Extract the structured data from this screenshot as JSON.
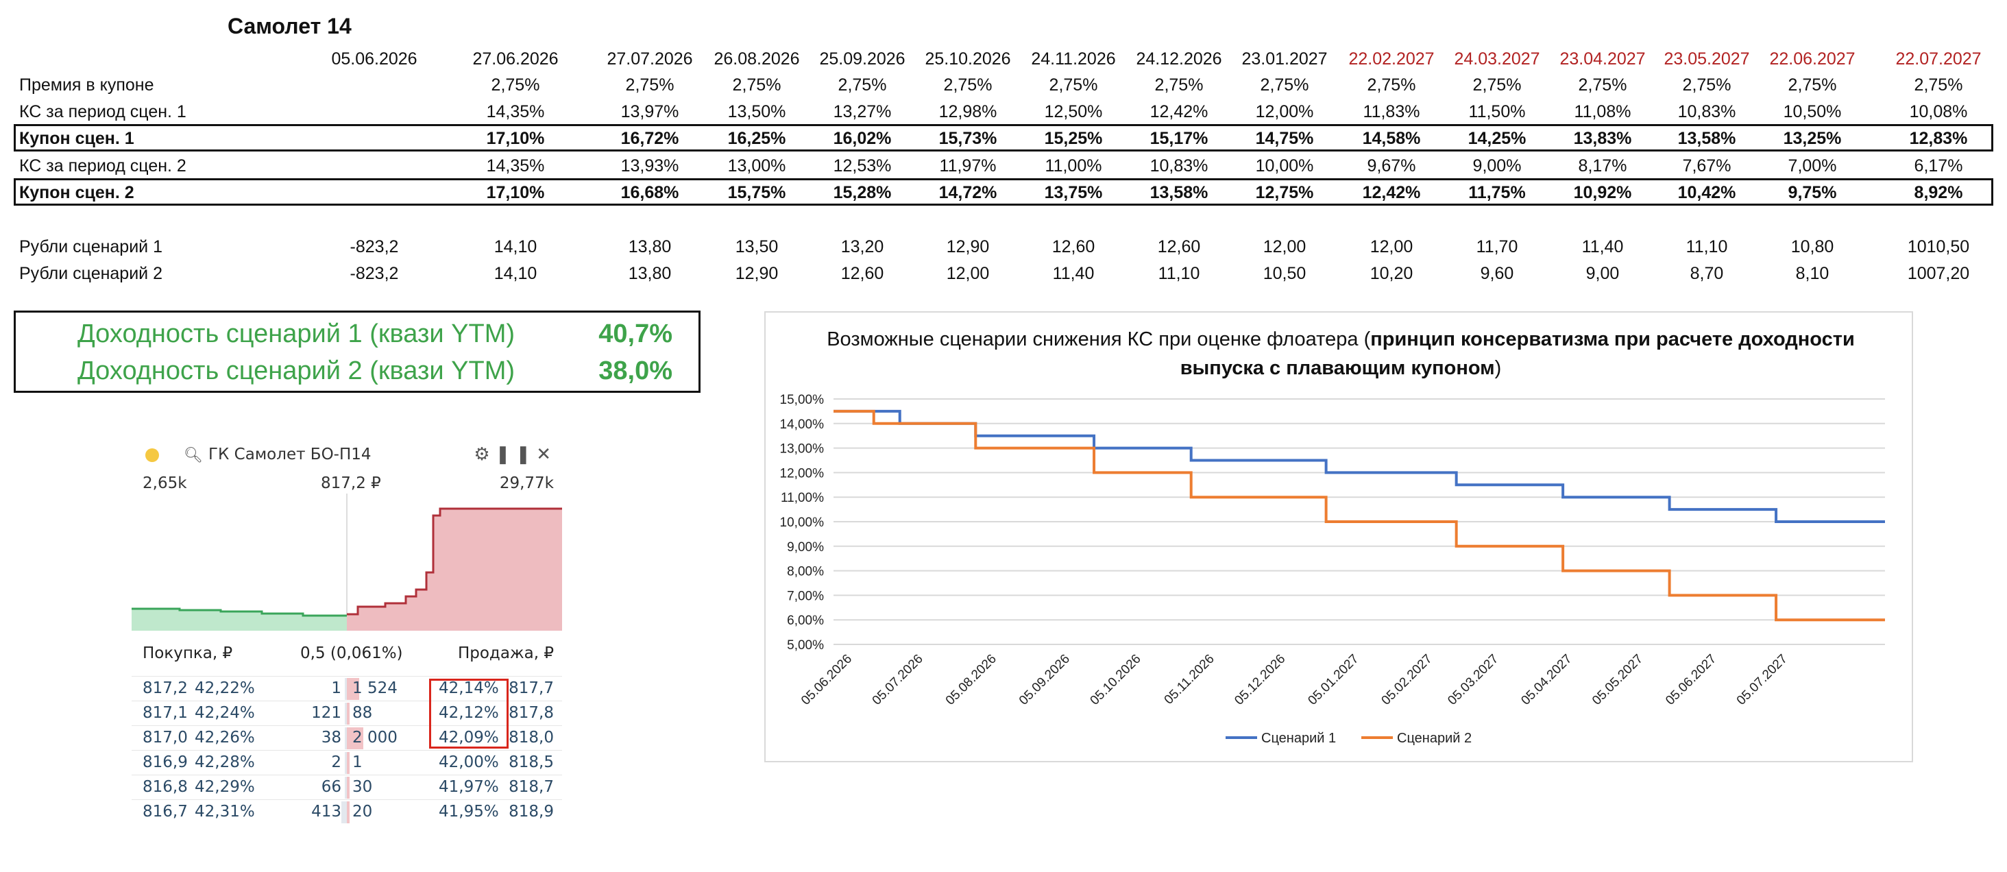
{
  "title": "Самолет 14",
  "dates": [
    "05.06.2026",
    "27.06.2026",
    "27.07.2026",
    "26.08.2026",
    "25.09.2026",
    "25.10.2026",
    "24.11.2026",
    "24.12.2026",
    "23.01.2027",
    "22.02.2027",
    "24.03.2027",
    "23.04.2027",
    "23.05.2027",
    "22.06.2027",
    "22.07.2027"
  ],
  "dates_red_from_index": 9,
  "rows": [
    {
      "label": "Премия в купоне",
      "bold": false,
      "values": [
        "",
        "2,75%",
        "2,75%",
        "2,75%",
        "2,75%",
        "2,75%",
        "2,75%",
        "2,75%",
        "2,75%",
        "2,75%",
        "2,75%",
        "2,75%",
        "2,75%",
        "2,75%",
        "2,75%"
      ]
    },
    {
      "label": "КС за период сцен. 1",
      "bold": false,
      "values": [
        "",
        "14,35%",
        "13,97%",
        "13,50%",
        "13,27%",
        "12,98%",
        "12,50%",
        "12,42%",
        "12,00%",
        "11,83%",
        "11,50%",
        "11,08%",
        "10,83%",
        "10,50%",
        "10,08%"
      ]
    },
    {
      "label": "Купон сцен. 1",
      "bold": true,
      "values": [
        "",
        "17,10%",
        "16,72%",
        "16,25%",
        "16,02%",
        "15,73%",
        "15,25%",
        "15,17%",
        "14,75%",
        "14,58%",
        "14,25%",
        "13,83%",
        "13,58%",
        "13,25%",
        "12,83%"
      ]
    },
    {
      "label": "КС за период сцен. 2",
      "bold": false,
      "values": [
        "",
        "14,35%",
        "13,93%",
        "13,00%",
        "12,53%",
        "11,97%",
        "11,00%",
        "10,83%",
        "10,00%",
        "9,67%",
        "9,00%",
        "8,17%",
        "7,67%",
        "7,00%",
        "6,17%"
      ]
    },
    {
      "label": "Купон сцен. 2",
      "bold": true,
      "values": [
        "",
        "17,10%",
        "16,68%",
        "15,75%",
        "15,28%",
        "14,72%",
        "13,75%",
        "13,58%",
        "12,75%",
        "12,42%",
        "11,75%",
        "10,92%",
        "10,42%",
        "9,75%",
        "8,92%"
      ]
    },
    {
      "label": "Рубли сценарий 1",
      "bold": false,
      "values": [
        "-823,2",
        "14,10",
        "13,80",
        "13,50",
        "13,20",
        "12,90",
        "12,60",
        "12,60",
        "12,00",
        "12,00",
        "11,70",
        "11,40",
        "11,10",
        "10,80",
        "1010,50"
      ]
    },
    {
      "label": "Рубли сценарий 2",
      "bold": false,
      "values": [
        "-823,2",
        "14,10",
        "13,80",
        "12,90",
        "12,60",
        "12,00",
        "11,40",
        "11,10",
        "10,50",
        "10,20",
        "9,60",
        "9,00",
        "8,70",
        "8,10",
        "1007,20"
      ]
    }
  ],
  "yield": {
    "s1_label": "Доходность сценарий 1 (квази YTM)",
    "s1_value": "40,7%",
    "s2_label": "Доходность сценарий 2 (квази YTM)",
    "s2_value": "38,0%",
    "color": "#3ea34a"
  },
  "orderbook": {
    "security": "ГК Самолет БО-П14",
    "bid_volume": "2,65k",
    "mid_price": "817,2 ₽",
    "ask_volume": "29,77k",
    "bid_header": "Покупка, ₽",
    "spread": "0,5 (0,061%)",
    "ask_header": "Продажа, ₽",
    "rows": [
      {
        "bid_price": "817,2",
        "bid_yield": "42,22%",
        "bid_qty": "1",
        "ask_qty": "1 524",
        "ask_yield": "42,14%",
        "ask_price": "817,7"
      },
      {
        "bid_price": "817,1",
        "bid_yield": "42,24%",
        "bid_qty": "121",
        "ask_qty": "88",
        "ask_yield": "42,12%",
        "ask_price": "817,8"
      },
      {
        "bid_price": "817,0",
        "bid_yield": "42,26%",
        "bid_qty": "38",
        "ask_qty": "2 000",
        "ask_yield": "42,09%",
        "ask_price": "818,0"
      },
      {
        "bid_price": "816,9",
        "bid_yield": "42,28%",
        "bid_qty": "2",
        "ask_qty": "1",
        "ask_yield": "42,00%",
        "ask_price": "818,5"
      },
      {
        "bid_price": "816,8",
        "bid_yield": "42,29%",
        "bid_qty": "66",
        "ask_qty": "30",
        "ask_yield": "41,97%",
        "ask_price": "818,7"
      },
      {
        "bid_price": "816,7",
        "bid_yield": "42,31%",
        "bid_qty": "413",
        "ask_qty": "20",
        "ask_yield": "41,95%",
        "ask_price": "818,9"
      }
    ],
    "bid_color": "#3aa55a",
    "ask_color": "#b0303a"
  },
  "chart_data": {
    "type": "line",
    "title_plain": "Возможные сценарии снижения КС при оценке флоатера (",
    "title_bold": "принцип консерватизма при расчете доходности выпуска с плавающим купоном",
    "title_end": ")",
    "ylim": [
      5.0,
      15.0
    ],
    "yticks": [
      "5,00%",
      "6,00%",
      "7,00%",
      "8,00%",
      "9,00%",
      "10,00%",
      "11,00%",
      "12,00%",
      "13,00%",
      "14,00%",
      "15,00%"
    ],
    "xticks": [
      "05.06.2026",
      "05.07.2026",
      "05.08.2026",
      "05.09.2026",
      "05.10.2026",
      "05.11.2026",
      "05.12.2026",
      "05.01.2027",
      "05.02.2027",
      "05.03.2027",
      "05.04.2027",
      "05.05.2027",
      "05.06.2027",
      "05.07.2027"
    ],
    "x_start": "2026-05-28",
    "x_end": "2027-08-15",
    "series": [
      {
        "name": "Сценарий 1",
        "color": "#4472c4",
        "steps": [
          [
            "2026-05-28",
            14.5
          ],
          [
            "2026-06-25",
            14.0
          ],
          [
            "2026-07-27",
            13.5
          ],
          [
            "2026-09-15",
            13.0
          ],
          [
            "2026-10-26",
            12.5
          ],
          [
            "2026-12-22",
            12.0
          ],
          [
            "2027-02-15",
            11.5
          ],
          [
            "2027-04-01",
            11.0
          ],
          [
            "2027-05-16",
            10.5
          ],
          [
            "2027-06-30",
            10.0
          ],
          [
            "2027-08-15",
            10.0
          ]
        ]
      },
      {
        "name": "Сценарий 2",
        "color": "#ed7d31",
        "steps": [
          [
            "2026-05-28",
            14.5
          ],
          [
            "2026-06-14",
            14.0
          ],
          [
            "2026-07-27",
            13.0
          ],
          [
            "2026-09-15",
            12.0
          ],
          [
            "2026-10-26",
            11.0
          ],
          [
            "2026-12-22",
            10.0
          ],
          [
            "2027-02-15",
            9.0
          ],
          [
            "2027-04-01",
            8.0
          ],
          [
            "2027-05-16",
            7.0
          ],
          [
            "2027-06-30",
            6.0
          ],
          [
            "2027-08-15",
            6.0
          ]
        ]
      }
    ],
    "legend_position": "bottom",
    "grid": true
  }
}
